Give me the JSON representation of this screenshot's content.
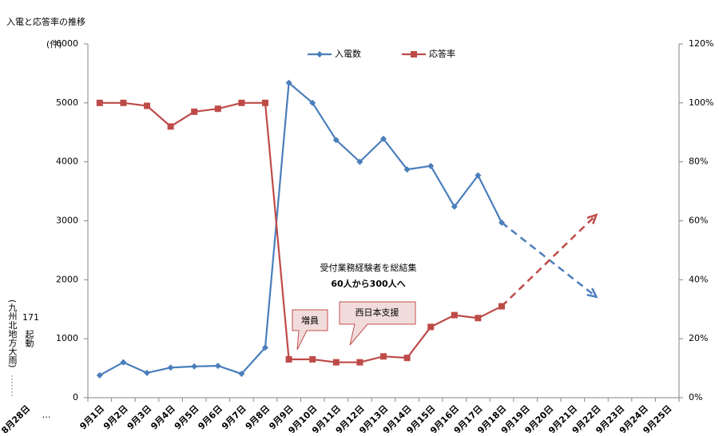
{
  "chart_data": {
    "type": "line",
    "title": "入電と応答率の推移",
    "ylabel": "(件)",
    "categories": [
      "9月1日",
      "9月2日",
      "9月3日",
      "9月4日",
      "9月5日",
      "9月6日",
      "9月7日",
      "9月8日",
      "9月9日",
      "9月10日",
      "9月11日",
      "9月12日",
      "9月13日",
      "9月14日",
      "9月15日",
      "9月16日",
      "9月17日",
      "9月18日",
      "9月19日",
      "9月20日",
      "9月21日",
      "9月22日",
      "9月23日",
      "9月24日",
      "9月25日"
    ],
    "extra_x_labels": [
      "8月28日",
      "…"
    ],
    "series": [
      {
        "name": "入電数",
        "color": "#4a7ebb",
        "marker": "diamond",
        "values": [
          380,
          600,
          420,
          510,
          530,
          540,
          405,
          850,
          5340,
          5000,
          4370,
          4000,
          4390,
          3870,
          3930,
          3240,
          3770,
          2970,
          null,
          null,
          null,
          null,
          null,
          null,
          null
        ]
      },
      {
        "name": "応答率",
        "color": "#be4b48",
        "marker": "square",
        "axis": "y2",
        "values": [
          100,
          100,
          99,
          92,
          97,
          98,
          100,
          100,
          13,
          13,
          12,
          12,
          14,
          13.5,
          24,
          28,
          27,
          31,
          null,
          null,
          null,
          null,
          null,
          null,
          null
        ]
      },
      {
        "color": "#4a7ebb",
        "dashed": true,
        "values": [
          null,
          null,
          null,
          null,
          null,
          null,
          null,
          null,
          null,
          null,
          null,
          null,
          null,
          null,
          null,
          null,
          null,
          2970,
          null,
          null,
          null,
          1710,
          null,
          null,
          null
        ]
      },
      {
        "color": "#be4b48",
        "dashed": true,
        "axis": "y2",
        "values": [
          null,
          null,
          null,
          null,
          null,
          null,
          null,
          null,
          null,
          null,
          null,
          null,
          null,
          null,
          null,
          null,
          null,
          31,
          null,
          null,
          null,
          62,
          null,
          null,
          null
        ]
      }
    ],
    "ylim": [
      0,
      6000
    ],
    "yticks": [
      0,
      1000,
      2000,
      3000,
      4000,
      5000,
      6000
    ],
    "y2lim": [
      0,
      120
    ],
    "y2ticks": [
      {
        "value": 0,
        "label": "0%"
      },
      {
        "value": 20,
        "label": "20%"
      },
      {
        "value": 40,
        "label": "40%"
      },
      {
        "value": 60,
        "label": "60%"
      },
      {
        "value": 80,
        "label": "80%"
      },
      {
        "value": 100,
        "label": "100%"
      },
      {
        "value": 120,
        "label": "120%"
      }
    ],
    "grid": false,
    "legend": "top",
    "annotations": {
      "main_1": "受付業務経験者を総結集",
      "main_2": "60人から300人へ",
      "callout_1": "増員",
      "callout_2": "西日本支援",
      "event_1": "(九州北地方大雨)",
      "event_2": "171",
      "event_3": "起動"
    }
  }
}
